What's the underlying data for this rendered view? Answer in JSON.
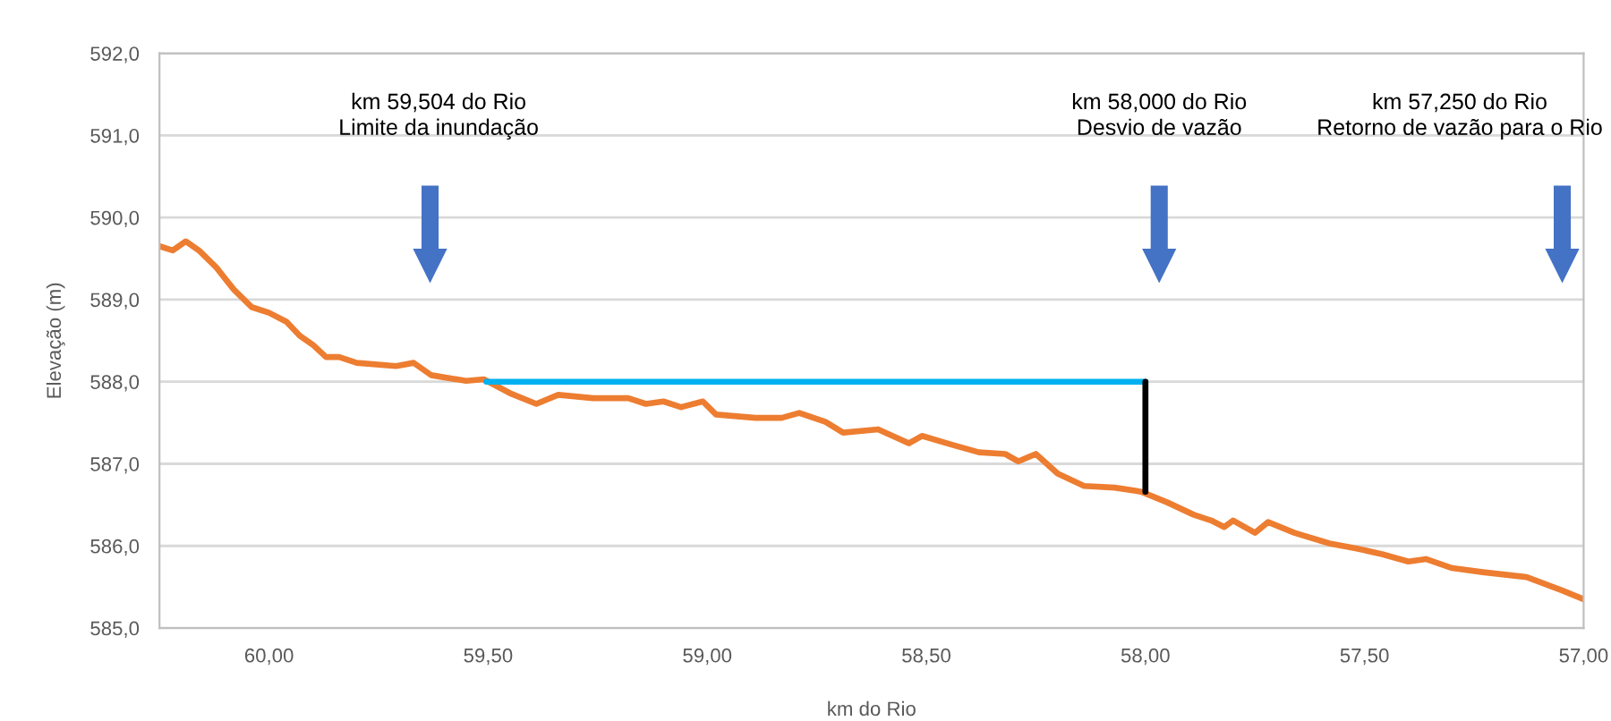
{
  "chart_data": {
    "type": "line",
    "xlabel": "km do Rio",
    "ylabel": "Elevação (m)",
    "xlim": [
      60.25,
      57.0
    ],
    "ylim": [
      585.0,
      592.0
    ],
    "xticks": [
      {
        "value": 60.0,
        "label": "60,00"
      },
      {
        "value": 59.5,
        "label": "59,50"
      },
      {
        "value": 59.0,
        "label": "59,00"
      },
      {
        "value": 58.5,
        "label": "58,50"
      },
      {
        "value": 58.0,
        "label": "58,00"
      },
      {
        "value": 57.5,
        "label": "57,50"
      },
      {
        "value": 57.0,
        "label": "57,00"
      }
    ],
    "yticks": [
      {
        "value": 585,
        "label": "585,0"
      },
      {
        "value": 586,
        "label": "586,0"
      },
      {
        "value": 587,
        "label": "587,0"
      },
      {
        "value": 588,
        "label": "588,0"
      },
      {
        "value": 589,
        "label": "589,0"
      },
      {
        "value": 590,
        "label": "590,0"
      },
      {
        "value": 591,
        "label": "591,0"
      },
      {
        "value": 592,
        "label": "592,0"
      }
    ],
    "grid": "y",
    "marker": "none",
    "line_style": "solid",
    "series": [
      {
        "color": "#ed7d31",
        "x": [
          60.25,
          60.22,
          60.19,
          60.16,
          60.12,
          60.08,
          60.04,
          60.0,
          59.96,
          59.93,
          59.9,
          59.87,
          59.84,
          59.8,
          59.71,
          59.67,
          59.63,
          59.55,
          59.51,
          59.45,
          59.39,
          59.34,
          59.26,
          59.18,
          59.14,
          59.1,
          59.06,
          59.01,
          58.98,
          58.89,
          58.83,
          58.79,
          58.73,
          58.69,
          58.61,
          58.54,
          58.51,
          58.44,
          58.38,
          58.32,
          58.29,
          58.25,
          58.2,
          58.14,
          58.07,
          58.01,
          57.95,
          57.89,
          57.85,
          57.82,
          57.8,
          57.75,
          57.72,
          57.66,
          57.58,
          57.52,
          57.46,
          57.4,
          57.36,
          57.3,
          57.23,
          57.13,
          57.05,
          57.0
        ],
        "values": [
          589.65,
          589.6,
          589.71,
          589.6,
          589.39,
          589.12,
          588.91,
          588.84,
          588.73,
          588.56,
          588.45,
          588.3,
          588.3,
          588.23,
          588.19,
          588.23,
          588.08,
          588.01,
          588.03,
          587.86,
          587.73,
          587.84,
          587.8,
          587.8,
          587.73,
          587.76,
          587.69,
          587.76,
          587.6,
          587.56,
          587.56,
          587.62,
          587.51,
          587.38,
          587.42,
          587.25,
          587.34,
          587.23,
          587.14,
          587.12,
          587.03,
          587.12,
          586.88,
          586.73,
          586.71,
          586.66,
          586.53,
          586.38,
          586.31,
          586.23,
          586.31,
          586.16,
          586.29,
          586.16,
          586.03,
          585.97,
          585.9,
          585.81,
          585.84,
          585.73,
          585.68,
          585.62,
          585.46,
          585.35
        ]
      },
      {
        "color": "#00b0f0",
        "x": [
          59.504,
          58.0
        ],
        "values": [
          588.0,
          588.0
        ]
      },
      {
        "color": "#000000",
        "x": [
          58.0,
          58.0
        ],
        "values": [
          588.0,
          586.66
        ]
      }
    ],
    "annotations": [
      "km 59,504 do Rio\nLimite da inundação",
      "km 58,000 do Rio\nDesvio de vazão",
      "km 57,250 do Rio\nRetorno de vazão para o Rio"
    ]
  }
}
